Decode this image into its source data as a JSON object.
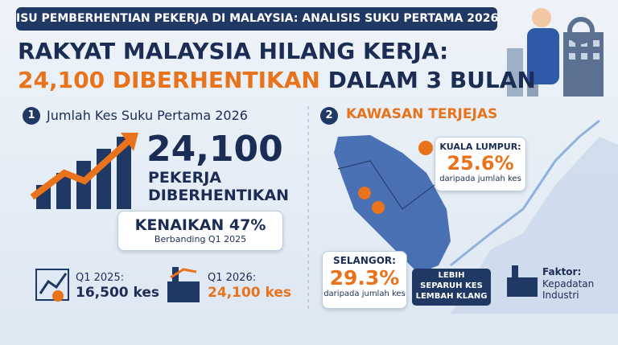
{
  "header": {
    "tag": "ISU PEMBERHENTIAN PEKERJA DI MALAYSIA: ANALISIS SUKU PERTAMA 2026",
    "title_line1": "RAKYAT MALAYSIA HILANG KERJA:",
    "title_line2_highlight": "24,100 DIBERHENTIKAN",
    "title_line2_rest": "DALAM 3 BULAN"
  },
  "section1": {
    "number": "1",
    "title": "Jumlah Kes Suku Pertama 2026",
    "big_number": "24,100",
    "big_label_line1": "PEKERJA",
    "big_label_line2": "DIBERHENTIKAN",
    "increase": {
      "title": "KENAIKAN 47%",
      "subtitle": "Berbanding Q1 2025"
    },
    "q1_2025": {
      "label": "Q1 2025:",
      "value": "16,500 kes"
    },
    "q1_2026": {
      "label": "Q1 2026:",
      "value": "24,100 kes"
    }
  },
  "section2": {
    "number": "2",
    "title": "KAWASAN TERJEJAS",
    "kuala_lumpur": {
      "label": "KUALA LUMPUR:",
      "value": "25.6%",
      "note": "daripada jumlah kes"
    },
    "selangor": {
      "label": "SELANGOR:",
      "value": "29.3%",
      "note": "daripada jumlah kes"
    },
    "banner": {
      "line1": "LEBIH",
      "line2": "SEPARUH KES",
      "line3": "LEMBAH KLANG"
    },
    "factor": {
      "label": "Faktor:",
      "line1": "Kepadatan",
      "line2": "Industri"
    }
  }
}
